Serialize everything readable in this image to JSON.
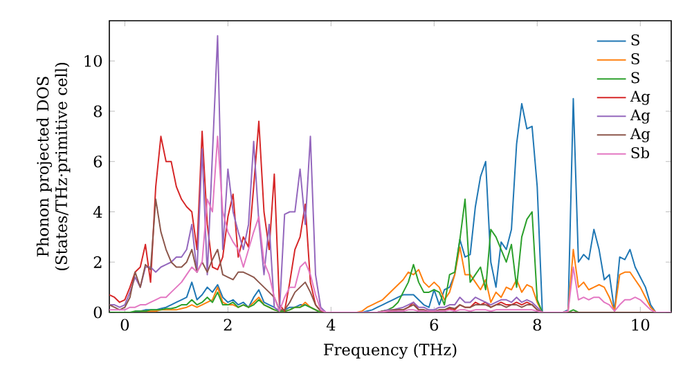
{
  "chart_data": {
    "type": "line",
    "xlabel": "Frequency (THz)",
    "ylabel": "Phonon projected DOS (States/THz·primitive cell)",
    "xlim": [
      -0.3,
      10.6
    ],
    "ylim": [
      0,
      11.6
    ],
    "xticks": [
      0,
      2,
      4,
      6,
      8,
      10
    ],
    "yticks": [
      0,
      2,
      4,
      6,
      8,
      10
    ],
    "grid": false,
    "legend": "top right",
    "marker": "none",
    "line_style": "solid",
    "x": [
      -0.3,
      -0.2,
      -0.1,
      0.0,
      0.1,
      0.2,
      0.3,
      0.4,
      0.5,
      0.6,
      0.7,
      0.8,
      0.9,
      1.0,
      1.1,
      1.2,
      1.3,
      1.4,
      1.5,
      1.6,
      1.7,
      1.8,
      1.9,
      2.0,
      2.1,
      2.2,
      2.3,
      2.4,
      2.5,
      2.6,
      2.7,
      2.8,
      2.9,
      3.0,
      3.1,
      3.2,
      3.3,
      3.4,
      3.5,
      3.6,
      3.7,
      3.8,
      3.9,
      4.0,
      4.1,
      4.2,
      4.3,
      4.4,
      4.5,
      4.6,
      4.7,
      4.8,
      4.9,
      5.0,
      5.1,
      5.2,
      5.3,
      5.4,
      5.5,
      5.6,
      5.7,
      5.8,
      5.9,
      6.0,
      6.1,
      6.2,
      6.3,
      6.4,
      6.5,
      6.6,
      6.7,
      6.8,
      6.9,
      7.0,
      7.1,
      7.2,
      7.3,
      7.4,
      7.5,
      7.6,
      7.7,
      7.8,
      7.9,
      8.0,
      8.1,
      8.2,
      8.3,
      8.4,
      8.5,
      8.6,
      8.7,
      8.8,
      8.9,
      9.0,
      9.1,
      9.2,
      9.3,
      9.4,
      9.5,
      9.6,
      9.7,
      9.8,
      9.9,
      10.0,
      10.1,
      10.2,
      10.3,
      10.4,
      10.5,
      10.6
    ],
    "series": [
      {
        "name": "S",
        "color": "#1f77b4",
        "values": [
          null,
          null,
          null,
          null,
          null,
          0.05,
          0.05,
          0.1,
          0.1,
          0.1,
          0.15,
          0.2,
          0.3,
          0.4,
          0.5,
          0.6,
          1.2,
          0.5,
          0.7,
          1.0,
          0.8,
          1.1,
          0.6,
          0.4,
          0.5,
          0.3,
          0.4,
          0.2,
          0.6,
          0.9,
          0.4,
          0.3,
          0.2,
          0.05,
          0.1,
          0.2,
          0.2,
          0.3,
          0.3,
          0.2,
          0.1,
          0,
          0,
          0,
          0,
          0,
          0,
          0,
          0,
          0,
          0.05,
          0.1,
          0.2,
          0.3,
          0.4,
          0.5,
          0.6,
          0.7,
          0.7,
          0.7,
          0.5,
          0.3,
          0.2,
          0.9,
          0.3,
          0.9,
          1.0,
          1.5,
          2.9,
          2.2,
          2.3,
          4.2,
          5.4,
          6.0,
          2.0,
          1.0,
          2.8,
          2.5,
          3.3,
          6.7,
          8.3,
          7.3,
          7.4,
          5.0,
          0,
          0,
          0,
          0,
          0,
          0.1,
          8.5,
          2.0,
          2.3,
          2.1,
          3.3,
          2.5,
          1.3,
          1.5,
          0.05,
          2.2,
          2.1,
          2.5,
          1.8,
          1.4,
          1.0,
          0.3,
          0,
          null,
          null,
          null
        ]
      },
      {
        "name": "S",
        "color": "#ff7f0e",
        "values": [
          null,
          null,
          null,
          null,
          null,
          null,
          0.05,
          0.05,
          0.05,
          0.05,
          0.1,
          0.1,
          0.1,
          0.1,
          0.15,
          0.2,
          0.3,
          0.2,
          0.3,
          0.4,
          0.5,
          1.0,
          0.4,
          0.3,
          0.3,
          0.2,
          0.3,
          0.2,
          0.4,
          0.6,
          0.3,
          0.2,
          0.1,
          0.05,
          0.05,
          0.1,
          0.2,
          0.2,
          0.4,
          0.2,
          0.1,
          0,
          0,
          0,
          0,
          0,
          0,
          0,
          0,
          0.05,
          0.2,
          0.3,
          0.4,
          0.5,
          0.7,
          0.9,
          1.1,
          1.3,
          1.6,
          1.5,
          1.7,
          1.2,
          1.0,
          1.2,
          1.0,
          0.5,
          0.8,
          1.5,
          2.6,
          1.5,
          1.5,
          1.2,
          0.9,
          1.3,
          0.4,
          0.8,
          0.6,
          1.0,
          0.9,
          1.3,
          0.8,
          1.1,
          1.0,
          0.4,
          0,
          0,
          0,
          0,
          0,
          0.05,
          2.5,
          1.0,
          1.2,
          0.9,
          1.0,
          1.1,
          1.0,
          0.6,
          0.05,
          1.5,
          1.6,
          1.6,
          1.3,
          1.0,
          0.6,
          0.2,
          0,
          null,
          null,
          null
        ]
      },
      {
        "name": "S",
        "color": "#2ca02c",
        "values": [
          0,
          0,
          0,
          0,
          0,
          0.05,
          0.05,
          0.05,
          0.1,
          0.1,
          0.1,
          0.15,
          0.15,
          0.2,
          0.3,
          0.3,
          0.5,
          0.3,
          0.4,
          0.6,
          0.4,
          0.8,
          0.3,
          0.3,
          0.4,
          0.2,
          0.3,
          0.2,
          0.3,
          0.5,
          0.3,
          0.2,
          0.1,
          0.05,
          0.05,
          0.1,
          0.2,
          0.2,
          0.3,
          0.2,
          0.1,
          0,
          0,
          0,
          0,
          0,
          0,
          0,
          0,
          0,
          0,
          0,
          0,
          0.05,
          0.1,
          0.2,
          0.4,
          0.8,
          1.2,
          1.9,
          1.2,
          0.8,
          0.8,
          0.9,
          0.8,
          0.3,
          1.5,
          1.6,
          2.9,
          4.5,
          1.2,
          1.5,
          1.8,
          0.9,
          3.3,
          3.0,
          2.5,
          2.0,
          2.7,
          1.0,
          3.0,
          3.7,
          4.0,
          0.5,
          0,
          0,
          0,
          0,
          0,
          0,
          0.1,
          0,
          null,
          null,
          null,
          null,
          null,
          null,
          null,
          null,
          null,
          null,
          null,
          null,
          null,
          null,
          null,
          null,
          null,
          null
        ]
      },
      {
        "name": "Ag",
        "color": "#d62728",
        "values": [
          0.7,
          0.6,
          0.4,
          0.5,
          1.0,
          1.6,
          1.8,
          2.7,
          1.2,
          5.0,
          7.0,
          6.0,
          6.0,
          5.0,
          4.5,
          4.2,
          4.0,
          2.5,
          7.2,
          3.5,
          1.8,
          1.7,
          2.2,
          3.8,
          4.7,
          2.2,
          3.0,
          2.6,
          5.0,
          7.6,
          4.0,
          2.5,
          5.5,
          0.3,
          0.05,
          1.2,
          2.5,
          3.0,
          4.3,
          1.2,
          0.3,
          0.05,
          0,
          0,
          0,
          0,
          0,
          0,
          0,
          0,
          0,
          0,
          0,
          0,
          0.05,
          0.05,
          0.1,
          0.1,
          0.2,
          0.4,
          0.1,
          0.1,
          0.05,
          0.05,
          0.1,
          0.1,
          0.15,
          0.1,
          0.3,
          0.2,
          0.2,
          0.4,
          0.3,
          0.4,
          0.2,
          0.3,
          0.4,
          0.3,
          0.3,
          0.4,
          0.3,
          0.4,
          0.3,
          0.1,
          0,
          0,
          0,
          0,
          0,
          0,
          0,
          null,
          null,
          null,
          null,
          null,
          null,
          null,
          null,
          null,
          null,
          null,
          null,
          null,
          null,
          null,
          null,
          null,
          null,
          null
        ]
      },
      {
        "name": "Ag",
        "color": "#9467bd",
        "values": [
          0.3,
          0.3,
          0.2,
          0.3,
          0.8,
          1.4,
          1.0,
          1.8,
          1.8,
          1.6,
          1.8,
          1.9,
          2.0,
          2.2,
          2.2,
          2.5,
          3.5,
          1.6,
          6.5,
          1.5,
          6.3,
          11.0,
          2.5,
          5.7,
          4.0,
          3.2,
          2.5,
          3.5,
          6.8,
          3.6,
          1.5,
          3.5,
          0.2,
          0.05,
          3.9,
          4.0,
          4.0,
          5.7,
          3.5,
          7.0,
          1.5,
          0.2,
          0,
          0,
          0,
          0,
          0,
          0,
          0,
          0,
          0,
          0,
          0,
          0.05,
          0.1,
          0.1,
          0.15,
          0.2,
          0.3,
          0.4,
          0.2,
          0.2,
          0.1,
          0.1,
          0.2,
          0.2,
          0.3,
          0.3,
          0.6,
          0.4,
          0.4,
          0.6,
          0.5,
          0.4,
          0.3,
          0.4,
          0.5,
          0.5,
          0.4,
          0.6,
          0.4,
          0.5,
          0.4,
          0.2,
          0,
          0,
          0,
          0,
          0,
          0,
          0,
          null,
          null,
          null,
          null,
          null,
          null,
          null,
          null,
          null,
          null,
          null,
          null,
          null,
          null,
          null,
          null,
          null,
          null,
          null
        ]
      },
      {
        "name": "Ag",
        "color": "#8c564b",
        "values": [
          0.3,
          0.2,
          0.1,
          0.2,
          0.6,
          1.6,
          1.0,
          1.9,
          1.7,
          4.5,
          3.2,
          2.5,
          2.0,
          1.8,
          1.8,
          2.0,
          2.5,
          1.6,
          2.0,
          1.6,
          2.1,
          2.5,
          1.5,
          1.4,
          1.3,
          1.6,
          1.6,
          1.5,
          1.4,
          1.2,
          1.0,
          0.8,
          0.6,
          0.1,
          0.1,
          0.4,
          0.8,
          1.0,
          1.2,
          0.8,
          0.3,
          0.05,
          0,
          0,
          0,
          0,
          0,
          0,
          0,
          0,
          0,
          0,
          0,
          0.05,
          0.05,
          0.1,
          0.1,
          0.1,
          0.2,
          0.3,
          0.1,
          0.1,
          0.05,
          0.05,
          0.1,
          0.1,
          0.2,
          0.15,
          0.3,
          0.2,
          0.2,
          0.3,
          0.3,
          0.3,
          0.2,
          0.3,
          0.3,
          0.2,
          0.3,
          0.3,
          0.2,
          0.3,
          0.3,
          0.1,
          0,
          0,
          0,
          0,
          0,
          0,
          0,
          0,
          0,
          0,
          0,
          0,
          0,
          0,
          0,
          0,
          0,
          0,
          0,
          0,
          0,
          0,
          0,
          null,
          null,
          null
        ]
      },
      {
        "name": "Sb",
        "color": "#e377c2",
        "values": [
          0.1,
          0.1,
          0.1,
          0.1,
          0.2,
          0.2,
          0.3,
          0.3,
          0.4,
          0.5,
          0.6,
          0.6,
          0.8,
          1.0,
          1.2,
          1.5,
          1.8,
          1.6,
          2.0,
          4.5,
          4.0,
          7.0,
          4.0,
          3.2,
          2.8,
          2.5,
          1.8,
          2.5,
          3.2,
          3.8,
          2.0,
          1.5,
          0.6,
          0.05,
          0.6,
          1.0,
          1.0,
          1.8,
          2.0,
          1.5,
          0.7,
          0.1,
          0,
          0,
          0,
          0,
          0,
          0,
          0,
          0,
          0,
          0,
          0,
          0.02,
          0.05,
          0.05,
          0.05,
          0.05,
          0.1,
          0.1,
          0.05,
          0.05,
          0.05,
          0.05,
          0.05,
          0.05,
          0.1,
          0.05,
          0.1,
          0.1,
          0.05,
          0.1,
          0.1,
          0.1,
          0.05,
          0.1,
          0.1,
          0.1,
          0.1,
          0.1,
          0.1,
          0.1,
          0.1,
          0.05,
          0,
          0,
          0,
          0,
          0,
          0.05,
          1.8,
          0.5,
          0.6,
          0.5,
          0.6,
          0.6,
          0.4,
          0.3,
          0.05,
          0.3,
          0.5,
          0.5,
          0.6,
          0.5,
          0.3,
          0.1,
          0,
          0,
          0,
          0
        ]
      }
    ]
  }
}
